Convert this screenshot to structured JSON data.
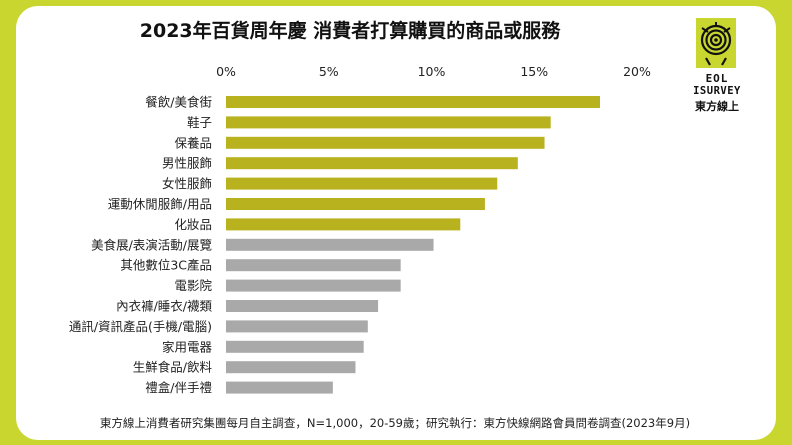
{
  "footnote": "東方線上消費者研究集團每月自主調查，N=1,000，20-59歲；研究執行：東方快線網路會員問卷調查(2023年9月)",
  "logo": {
    "line1": "EOL",
    "line2": "ISURVEY",
    "line3": "東方線上",
    "icon": "spiral-eye-icon"
  },
  "colors": {
    "frame": "#c9d630",
    "highlight_bar": "#b9b21f",
    "other_bar": "#a9a9a9"
  },
  "chart_data": {
    "type": "bar",
    "orientation": "horizontal",
    "title": "2023年百貨周年慶 消費者打算購買的商品或服務",
    "xlabel": "",
    "ylabel": "",
    "xlim": [
      0,
      20
    ],
    "xticks": [
      "0%",
      "5%",
      "10%",
      "15%",
      "20%"
    ],
    "unit": "%",
    "grid": false,
    "categories": [
      "餐飲/美食街",
      "鞋子",
      "保養品",
      "男性服飾",
      "女性服飾",
      "運動休閒服飾/用品",
      "化妝品",
      "美食展/表演活動/展覽",
      "其他數位3C產品",
      "電影院",
      "內衣褲/睡衣/襪類",
      "通訊/資訊產品(手機/電腦)",
      "家用電器",
      "生鮮食品/飲料",
      "禮盒/伴手禮"
    ],
    "values": [
      18.2,
      15.8,
      15.5,
      14.2,
      13.2,
      12.6,
      11.4,
      10.1,
      8.5,
      8.5,
      7.4,
      6.9,
      6.7,
      6.3,
      5.2
    ],
    "highlighted_count": 7
  }
}
